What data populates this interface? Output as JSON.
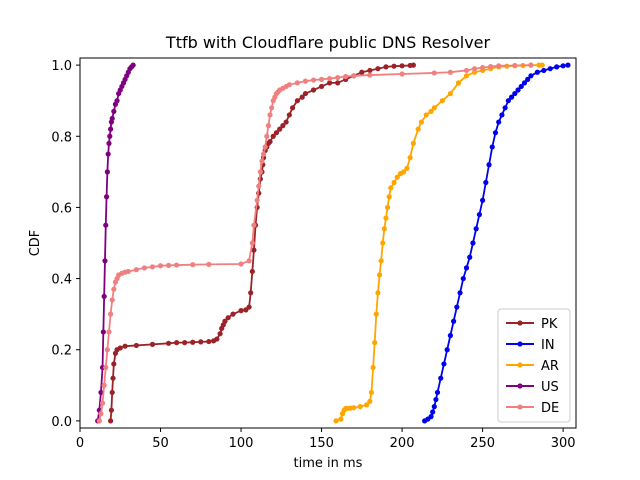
{
  "chart_data": {
    "type": "line",
    "title": "Ttfb with Cloudflare public DNS Resolver",
    "xlabel": "time in ms",
    "ylabel": "CDF",
    "xlim": [
      0,
      308
    ],
    "ylim": [
      -0.02,
      1.02
    ],
    "xticks": [
      "0",
      "50",
      "100",
      "150",
      "200",
      "250",
      "300"
    ],
    "yticks": [
      "0.0",
      "0.2",
      "0.4",
      "0.6",
      "0.8",
      "1.0"
    ],
    "grid": false,
    "legend_position": "lower-right",
    "series": [
      {
        "name": "PK",
        "color": "#9b2226",
        "x": [
          19,
          19.5,
          20,
          20.5,
          21,
          22,
          23,
          25,
          28,
          35,
          45,
          55,
          60,
          65,
          70,
          75,
          80,
          83,
          85,
          87,
          88,
          89,
          90,
          92,
          95,
          100,
          103,
          105,
          106,
          107,
          108,
          109,
          110,
          111,
          112,
          113,
          113.5,
          114,
          115,
          116,
          117,
          118,
          120,
          122,
          124,
          126,
          128,
          130,
          132,
          135,
          138,
          140,
          145,
          150,
          155,
          160,
          165,
          170,
          175,
          180,
          185,
          190,
          195,
          200,
          205,
          207
        ],
        "y": [
          0.0,
          0.03,
          0.08,
          0.12,
          0.16,
          0.19,
          0.2,
          0.205,
          0.21,
          0.212,
          0.215,
          0.218,
          0.22,
          0.22,
          0.221,
          0.222,
          0.223,
          0.225,
          0.23,
          0.245,
          0.26,
          0.27,
          0.28,
          0.29,
          0.3,
          0.31,
          0.312,
          0.32,
          0.36,
          0.42,
          0.48,
          0.55,
          0.6,
          0.64,
          0.68,
          0.7,
          0.72,
          0.74,
          0.76,
          0.77,
          0.78,
          0.785,
          0.8,
          0.81,
          0.82,
          0.83,
          0.84,
          0.86,
          0.88,
          0.9,
          0.91,
          0.92,
          0.93,
          0.94,
          0.95,
          0.95,
          0.96,
          0.97,
          0.98,
          0.985,
          0.99,
          0.995,
          0.997,
          0.998,
          0.999,
          1.0
        ]
      },
      {
        "name": "IN",
        "color": "#0000ee",
        "x": [
          214,
          216,
          218,
          219,
          220,
          221,
          222,
          224,
          226,
          228,
          230,
          232,
          234,
          236,
          238,
          240,
          242,
          244,
          246,
          248,
          250,
          252,
          254,
          256,
          258,
          260,
          262,
          264,
          266,
          268,
          270,
          272,
          274,
          276,
          278,
          280,
          284,
          288,
          292,
          296,
          300,
          303
        ],
        "y": [
          0.0,
          0.005,
          0.012,
          0.025,
          0.04,
          0.06,
          0.08,
          0.12,
          0.16,
          0.2,
          0.24,
          0.28,
          0.32,
          0.36,
          0.4,
          0.43,
          0.46,
          0.5,
          0.54,
          0.58,
          0.62,
          0.67,
          0.72,
          0.77,
          0.81,
          0.84,
          0.86,
          0.88,
          0.9,
          0.91,
          0.92,
          0.93,
          0.94,
          0.95,
          0.96,
          0.97,
          0.98,
          0.985,
          0.99,
          0.995,
          0.998,
          1.0
        ]
      },
      {
        "name": "AR",
        "color": "#ffa500",
        "x": [
          159,
          162,
          163,
          164,
          165,
          166,
          168,
          170,
          174,
          178,
          180,
          181,
          182,
          183,
          184,
          185,
          186,
          187,
          188,
          189,
          190,
          191,
          192,
          193,
          195,
          197,
          199,
          201,
          203,
          205,
          207,
          210,
          212,
          215,
          218,
          220,
          225,
          230,
          235,
          240,
          245,
          250,
          255,
          260,
          265,
          270,
          275,
          280,
          285,
          287
        ],
        "y": [
          0.0,
          0.005,
          0.02,
          0.03,
          0.035,
          0.035,
          0.036,
          0.037,
          0.04,
          0.045,
          0.055,
          0.08,
          0.15,
          0.22,
          0.3,
          0.36,
          0.41,
          0.45,
          0.5,
          0.54,
          0.57,
          0.6,
          0.63,
          0.655,
          0.67,
          0.685,
          0.695,
          0.7,
          0.71,
          0.74,
          0.78,
          0.82,
          0.84,
          0.86,
          0.87,
          0.88,
          0.9,
          0.92,
          0.95,
          0.97,
          0.98,
          0.985,
          0.99,
          0.995,
          0.997,
          0.998,
          0.999,
          1.0,
          1.0,
          1.0
        ]
      },
      {
        "name": "US",
        "color": "#800080",
        "x": [
          11,
          12,
          13,
          14,
          14.5,
          15,
          15.5,
          16,
          16.5,
          17,
          17.5,
          18,
          18.5,
          19,
          19.5,
          20,
          21,
          22,
          23,
          24,
          25,
          26,
          27,
          28,
          29,
          30,
          31,
          32,
          33
        ],
        "y": [
          0.0,
          0.03,
          0.08,
          0.15,
          0.25,
          0.35,
          0.45,
          0.55,
          0.63,
          0.7,
          0.75,
          0.78,
          0.8,
          0.82,
          0.84,
          0.85,
          0.87,
          0.89,
          0.9,
          0.92,
          0.93,
          0.94,
          0.95,
          0.96,
          0.97,
          0.98,
          0.99,
          0.995,
          1.0
        ]
      },
      {
        "name": "DE",
        "color": "#f08080",
        "x": [
          12,
          13,
          14,
          15,
          16,
          17,
          18,
          19,
          20,
          21,
          22,
          23,
          24,
          26,
          28,
          30,
          35,
          40,
          45,
          50,
          55,
          60,
          70,
          80,
          100,
          105,
          107,
          108,
          110,
          111,
          112,
          113,
          114,
          115,
          116,
          117,
          118,
          119,
          120,
          121,
          122,
          123,
          124,
          126,
          128,
          130,
          135,
          140,
          145,
          150,
          155,
          160,
          165,
          170,
          180,
          200,
          220,
          230,
          240,
          245,
          250,
          255,
          260,
          270,
          280
        ],
        "y": [
          0.0,
          0.02,
          0.05,
          0.1,
          0.15,
          0.2,
          0.25,
          0.3,
          0.34,
          0.37,
          0.39,
          0.4,
          0.41,
          0.415,
          0.418,
          0.42,
          0.425,
          0.43,
          0.433,
          0.436,
          0.437,
          0.438,
          0.439,
          0.44,
          0.441,
          0.45,
          0.5,
          0.55,
          0.62,
          0.66,
          0.7,
          0.73,
          0.75,
          0.77,
          0.8,
          0.83,
          0.86,
          0.88,
          0.9,
          0.91,
          0.92,
          0.925,
          0.93,
          0.935,
          0.94,
          0.945,
          0.95,
          0.955,
          0.958,
          0.96,
          0.962,
          0.965,
          0.968,
          0.97,
          0.972,
          0.975,
          0.978,
          0.98,
          0.985,
          0.99,
          0.993,
          0.996,
          0.998,
          0.999,
          1.0
        ]
      }
    ]
  }
}
